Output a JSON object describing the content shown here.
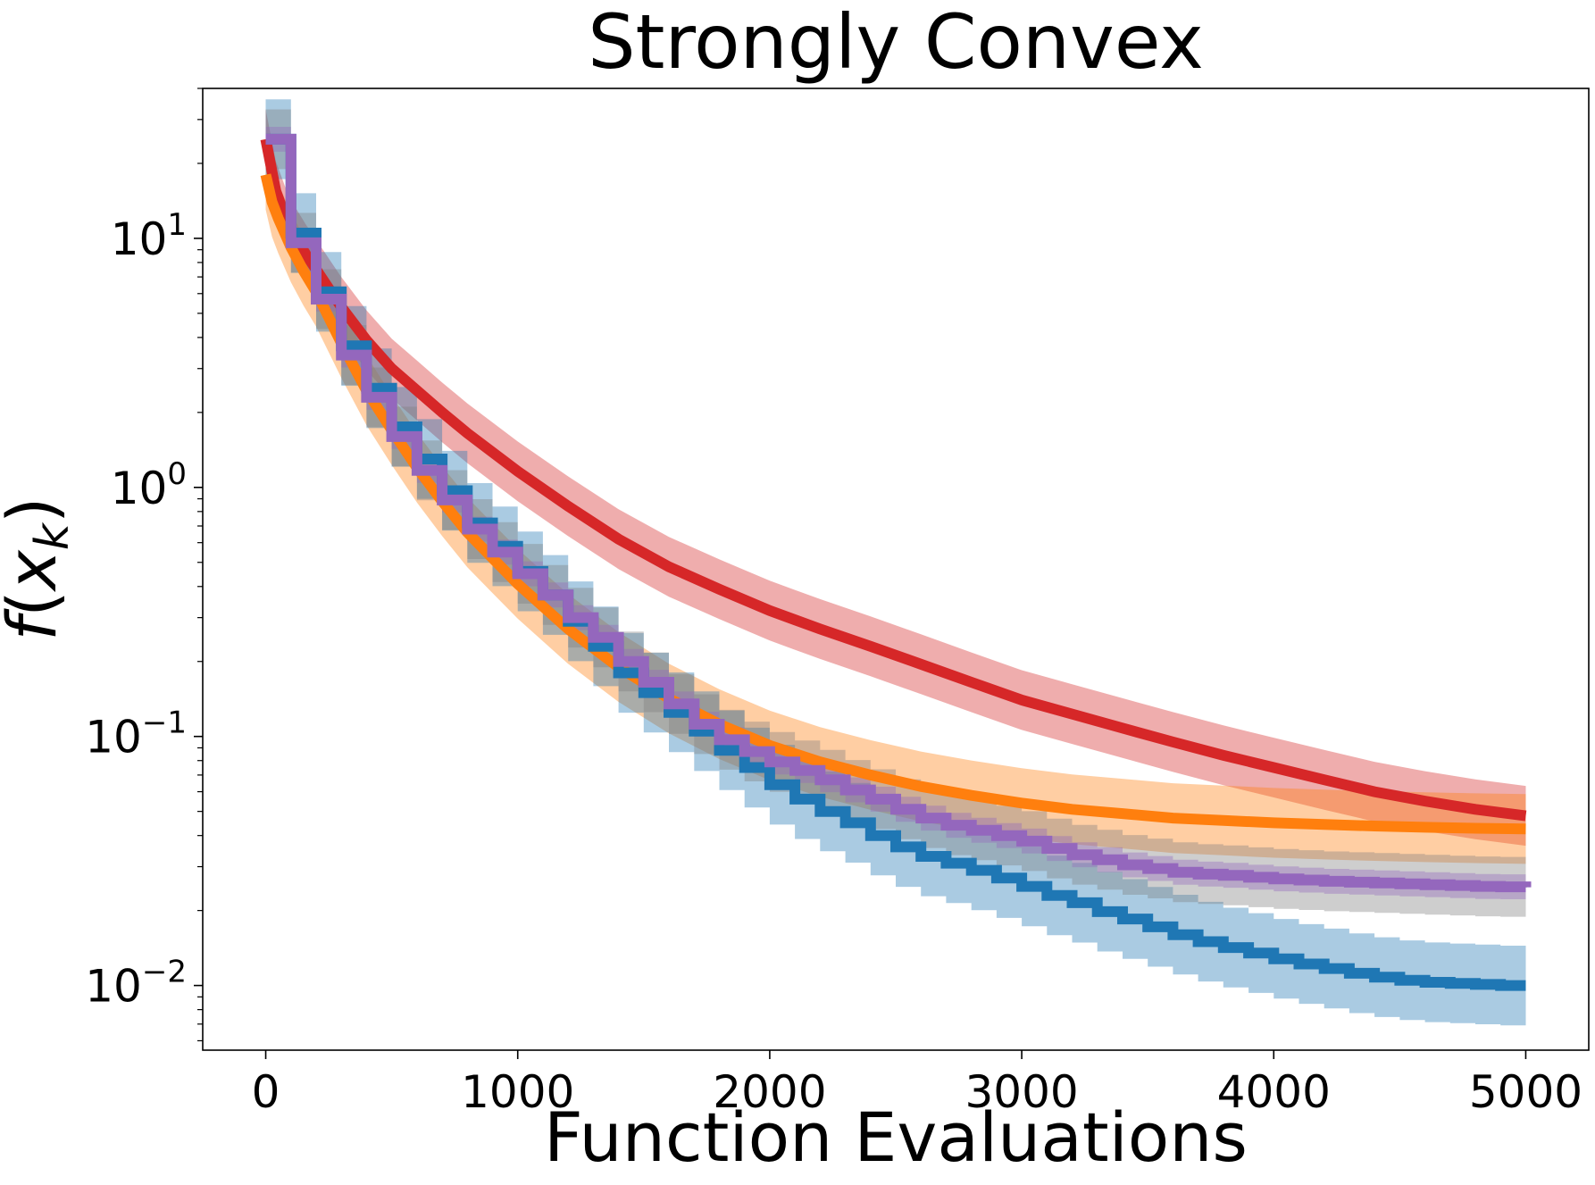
{
  "chart_data": {
    "type": "line",
    "title": "Strongly Convex",
    "xlabel": "Function Evaluations",
    "ylabel_parts": {
      "func": "f",
      "open": "(",
      "var": "x",
      "sub": "k",
      "close": ")"
    },
    "xlim": [
      -250,
      5250
    ],
    "ylim": [
      0.0055,
      40
    ],
    "yscale": "log",
    "grid": false,
    "xticks": [
      0,
      1000,
      2000,
      3000,
      4000,
      5000
    ],
    "xtick_labels": [
      "0",
      "1000",
      "2000",
      "3000",
      "4000",
      "5000"
    ],
    "yticks": [
      {
        "value": 0.01,
        "base": "10",
        "exp": "−2"
      },
      {
        "value": 0.1,
        "base": "10",
        "exp": "−1"
      },
      {
        "value": 1,
        "base": "10",
        "exp": "0"
      },
      {
        "value": 10,
        "base": "10",
        "exp": "1"
      }
    ],
    "series": [
      {
        "color": "#d62728",
        "band_color": "#d62728",
        "step": false,
        "width": 12,
        "x": [
          0,
          40,
          80,
          120,
          160,
          200,
          250,
          300,
          400,
          500,
          600,
          700,
          800,
          1000,
          1200,
          1400,
          1600,
          1800,
          2000,
          2200,
          2400,
          2600,
          2800,
          3000,
          3200,
          3400,
          3600,
          3800,
          4000,
          4200,
          4400,
          4600,
          4800,
          5000
        ],
        "y": [
          25,
          15.5,
          12,
          10,
          8.6,
          7.5,
          6.3,
          5.3,
          3.9,
          3.0,
          2.45,
          2.0,
          1.65,
          1.16,
          0.84,
          0.62,
          0.48,
          0.39,
          0.32,
          0.27,
          0.23,
          0.195,
          0.165,
          0.14,
          0.123,
          0.108,
          0.095,
          0.084,
          0.075,
          0.067,
          0.06,
          0.055,
          0.051,
          0.048
        ],
        "band": 0.12
      },
      {
        "color": "#ff7f0e",
        "band_color": "#ff7f0e",
        "step": false,
        "width": 12,
        "x": [
          0,
          25,
          50,
          100,
          150,
          200,
          300,
          400,
          500,
          600,
          700,
          800,
          900,
          1000,
          1200,
          1400,
          1600,
          1800,
          2000,
          2200,
          2400,
          2600,
          2800,
          3000,
          3200,
          3400,
          3600,
          3800,
          4000,
          4200,
          4400,
          4600,
          4800,
          5000
        ],
        "y": [
          18,
          14,
          12,
          9.2,
          7.4,
          6.1,
          3.8,
          2.45,
          1.7,
          1.2,
          0.88,
          0.66,
          0.52,
          0.41,
          0.27,
          0.19,
          0.142,
          0.112,
          0.092,
          0.079,
          0.07,
          0.063,
          0.058,
          0.054,
          0.051,
          0.049,
          0.047,
          0.046,
          0.045,
          0.0443,
          0.0437,
          0.0432,
          0.0428,
          0.0425
        ],
        "band": 0.14
      },
      {
        "color": "#1f77b4",
        "band_color": "#1f77b4",
        "step": true,
        "width": 12,
        "x": [
          0,
          100,
          200,
          300,
          400,
          500,
          600,
          700,
          800,
          900,
          1000,
          1100,
          1200,
          1300,
          1400,
          1500,
          1600,
          1700,
          1800,
          1900,
          2000,
          2100,
          2200,
          2300,
          2400,
          2500,
          2600,
          2700,
          2800,
          2900,
          3000,
          3100,
          3200,
          3300,
          3400,
          3500,
          3600,
          3700,
          3800,
          3900,
          4000,
          4100,
          4200,
          4300,
          4400,
          4500,
          4600,
          4700,
          4800,
          4900,
          5000
        ],
        "y": [
          25,
          10.5,
          6.1,
          3.7,
          2.5,
          1.75,
          1.3,
          0.97,
          0.72,
          0.58,
          0.46,
          0.37,
          0.29,
          0.23,
          0.18,
          0.15,
          0.125,
          0.105,
          0.088,
          0.075,
          0.064,
          0.056,
          0.05,
          0.045,
          0.04,
          0.036,
          0.033,
          0.031,
          0.029,
          0.027,
          0.025,
          0.023,
          0.0215,
          0.0198,
          0.0185,
          0.0172,
          0.016,
          0.015,
          0.0142,
          0.0135,
          0.0128,
          0.0122,
          0.0117,
          0.0112,
          0.0108,
          0.0105,
          0.0103,
          0.0102,
          0.0101,
          0.01,
          0.01
        ],
        "band": 0.16
      },
      {
        "color": "#2ca02c",
        "band_color": "#7f7f7f",
        "step": true,
        "width": 3,
        "x": [
          0,
          100,
          200,
          300,
          400,
          500,
          600,
          700,
          800,
          900,
          1000,
          1100,
          1200,
          1300,
          1400,
          1500,
          1600,
          1700,
          1800,
          1900,
          2000,
          2100,
          2200,
          2300,
          2400,
          2500,
          2600,
          2700,
          2800,
          2900,
          3000,
          3100,
          3200,
          3300,
          3400,
          3500,
          3600,
          3700,
          3800,
          3900,
          4000,
          4100,
          4200,
          4300,
          4400,
          4500,
          4600,
          4700,
          4800,
          4900,
          5000
        ],
        "y": [
          25,
          9.6,
          5.7,
          3.4,
          2.3,
          1.6,
          1.17,
          0.89,
          0.68,
          0.55,
          0.45,
          0.37,
          0.3,
          0.25,
          0.2,
          0.165,
          0.135,
          0.112,
          0.097,
          0.087,
          0.079,
          0.073,
          0.067,
          0.061,
          0.056,
          0.051,
          0.047,
          0.044,
          0.042,
          0.04,
          0.038,
          0.0355,
          0.0335,
          0.032,
          0.0305,
          0.0295,
          0.0285,
          0.028,
          0.0277,
          0.0272,
          0.0268,
          0.0265,
          0.0262,
          0.026,
          0.0258,
          0.0256,
          0.0254,
          0.0252,
          0.025,
          0.0249,
          0.0248
        ],
        "band": 0.12
      },
      {
        "color": "#9467bd",
        "band_color": "#9467bd",
        "step": true,
        "width": 12,
        "x": [
          0,
          100,
          200,
          300,
          400,
          500,
          600,
          700,
          800,
          900,
          1000,
          1100,
          1200,
          1300,
          1400,
          1500,
          1600,
          1700,
          1800,
          1900,
          2000,
          2100,
          2200,
          2300,
          2400,
          2500,
          2600,
          2700,
          2800,
          2900,
          3000,
          3100,
          3200,
          3300,
          3400,
          3500,
          3600,
          3700,
          3800,
          3900,
          4000,
          4100,
          4200,
          4300,
          4400,
          4500,
          4600,
          4700,
          4800,
          4900,
          5000
        ],
        "y": [
          25,
          9.6,
          5.7,
          3.4,
          2.3,
          1.6,
          1.17,
          0.89,
          0.68,
          0.55,
          0.45,
          0.37,
          0.3,
          0.25,
          0.2,
          0.165,
          0.135,
          0.112,
          0.097,
          0.087,
          0.079,
          0.073,
          0.067,
          0.061,
          0.056,
          0.051,
          0.047,
          0.044,
          0.042,
          0.04,
          0.038,
          0.0355,
          0.0335,
          0.032,
          0.0305,
          0.0295,
          0.0285,
          0.028,
          0.0277,
          0.0272,
          0.0268,
          0.0265,
          0.0262,
          0.026,
          0.0258,
          0.0256,
          0.0254,
          0.0252,
          0.025,
          0.0249,
          0.0248
        ],
        "band": 0.05
      }
    ]
  }
}
